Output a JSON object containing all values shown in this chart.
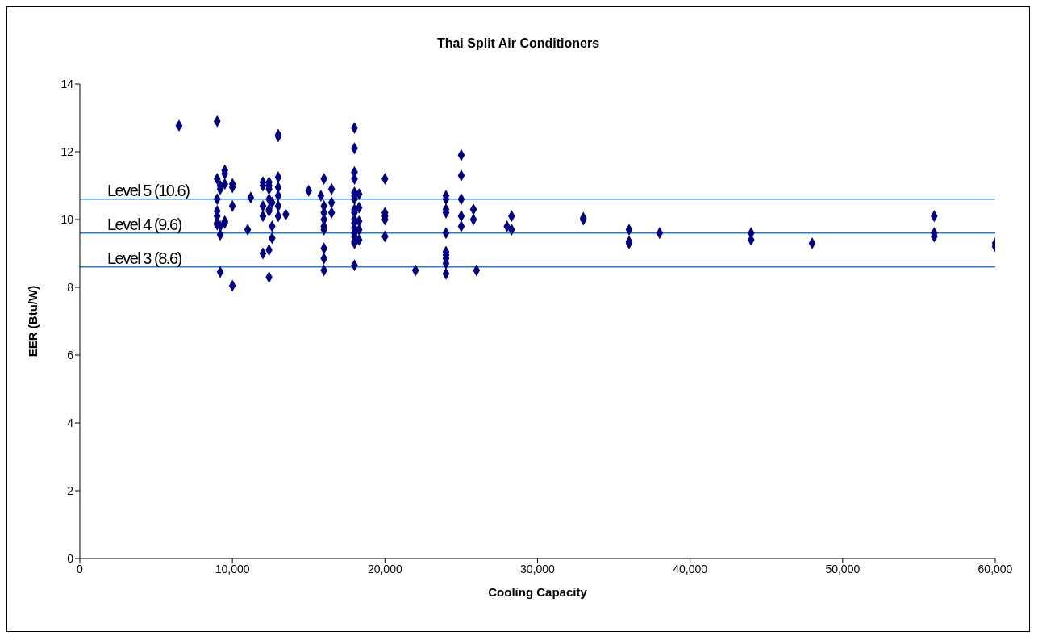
{
  "chart_data": {
    "type": "scatter",
    "title": "Thai Split Air Conditioners",
    "xlabel": "Cooling Capacity",
    "ylabel": "EER (Btu/W)",
    "xlim": [
      0,
      60000
    ],
    "xticks": [
      0,
      {
        "value": 10000,
        "label": "10,000"
      },
      {
        "value": 20000,
        "label": "20,000"
      },
      {
        "value": 30000,
        "label": "30,000"
      },
      {
        "value": 40000,
        "label": "40,000"
      },
      {
        "value": 50000,
        "label": "50,000"
      },
      {
        "value": 60000,
        "label": "60,000"
      }
    ],
    "ylim": [
      0,
      14
    ],
    "yticks": [
      0,
      2,
      4,
      6,
      8,
      10,
      12,
      14
    ],
    "grid": false,
    "marker": "diamond",
    "series": [
      {
        "color": "#000080",
        "x": [
          6500,
          9000,
          9000,
          9000,
          9000,
          9000,
          9000,
          9000,
          9200,
          9200,
          9200,
          9200,
          9200,
          9500,
          9500,
          9500,
          9500,
          9500,
          10000,
          10000,
          10000,
          10000,
          11000,
          11200,
          12000,
          12000,
          12000,
          12000,
          12000,
          12400,
          12400,
          12400,
          12400,
          12400,
          12400,
          12400,
          12400,
          12600,
          12600,
          12600,
          13000,
          13000,
          13000,
          13000,
          13000,
          13000,
          13000,
          13500,
          15000,
          15800,
          16000,
          16000,
          16000,
          16000,
          16000,
          16000,
          16000,
          16000,
          16000,
          16500,
          16500,
          16500,
          18000,
          18000,
          18000,
          18000,
          18000,
          18000,
          18000,
          18000,
          18000,
          18000,
          18000,
          18000,
          18000,
          18000,
          18000,
          18000,
          18000,
          18300,
          18300,
          18300,
          18300,
          18300,
          20000,
          20000,
          20000,
          20000,
          20000,
          22000,
          24000,
          24000,
          24000,
          24000,
          24000,
          24000,
          24000,
          24000,
          24000,
          24000,
          25000,
          25000,
          25000,
          25000,
          25000,
          25800,
          25800,
          26000,
          28000,
          28300,
          28300,
          33000,
          33000,
          36000,
          36000,
          36000,
          38000,
          44000,
          44000,
          48000,
          56000,
          56000,
          56000,
          60000,
          60000
        ],
        "values": [
          12.77,
          12.9,
          11.2,
          10.6,
          10.25,
          10.1,
          9.9,
          9.85,
          11.0,
          10.9,
          9.8,
          9.55,
          8.45,
          11.45,
          11.35,
          11.05,
          9.95,
          9.9,
          11.05,
          10.95,
          10.4,
          8.05,
          9.7,
          10.65,
          11.1,
          11.0,
          10.4,
          10.1,
          9.0,
          11.1,
          11.0,
          10.9,
          10.6,
          10.3,
          10.25,
          9.1,
          8.3,
          10.5,
          9.8,
          9.45,
          12.5,
          12.45,
          11.25,
          10.95,
          10.7,
          10.4,
          10.1,
          10.15,
          10.85,
          10.7,
          11.2,
          10.4,
          10.2,
          10.0,
          9.8,
          9.7,
          9.15,
          8.85,
          8.5,
          10.9,
          10.5,
          10.2,
          12.7,
          12.1,
          11.4,
          11.2,
          10.8,
          10.7,
          10.6,
          10.3,
          10.2,
          10.0,
          9.9,
          9.75,
          9.6,
          9.5,
          9.35,
          9.3,
          8.65,
          10.75,
          10.35,
          9.95,
          9.7,
          9.4,
          11.2,
          10.2,
          10.1,
          10.0,
          9.5,
          8.5,
          10.7,
          10.6,
          10.3,
          10.2,
          9.6,
          9.05,
          8.95,
          8.85,
          8.7,
          8.4,
          11.9,
          11.3,
          10.6,
          10.1,
          9.8,
          10.3,
          10.0,
          8.5,
          9.8,
          9.7,
          10.1,
          10.05,
          10.0,
          9.7,
          9.35,
          9.3,
          9.6,
          9.6,
          9.4,
          9.3,
          10.1,
          9.6,
          9.5,
          9.3,
          9.2
        ]
      }
    ],
    "ref_lines": [
      {
        "axis": "y",
        "value": 10.6,
        "label": "Level 5 (10.6)",
        "color": "#1f7fd6"
      },
      {
        "axis": "y",
        "value": 9.6,
        "label": "Level 4 (9.6)",
        "color": "#1f7fd6"
      },
      {
        "axis": "y",
        "value": 8.6,
        "label": "Level 3 (8.6)",
        "color": "#1f7fd6"
      }
    ]
  }
}
